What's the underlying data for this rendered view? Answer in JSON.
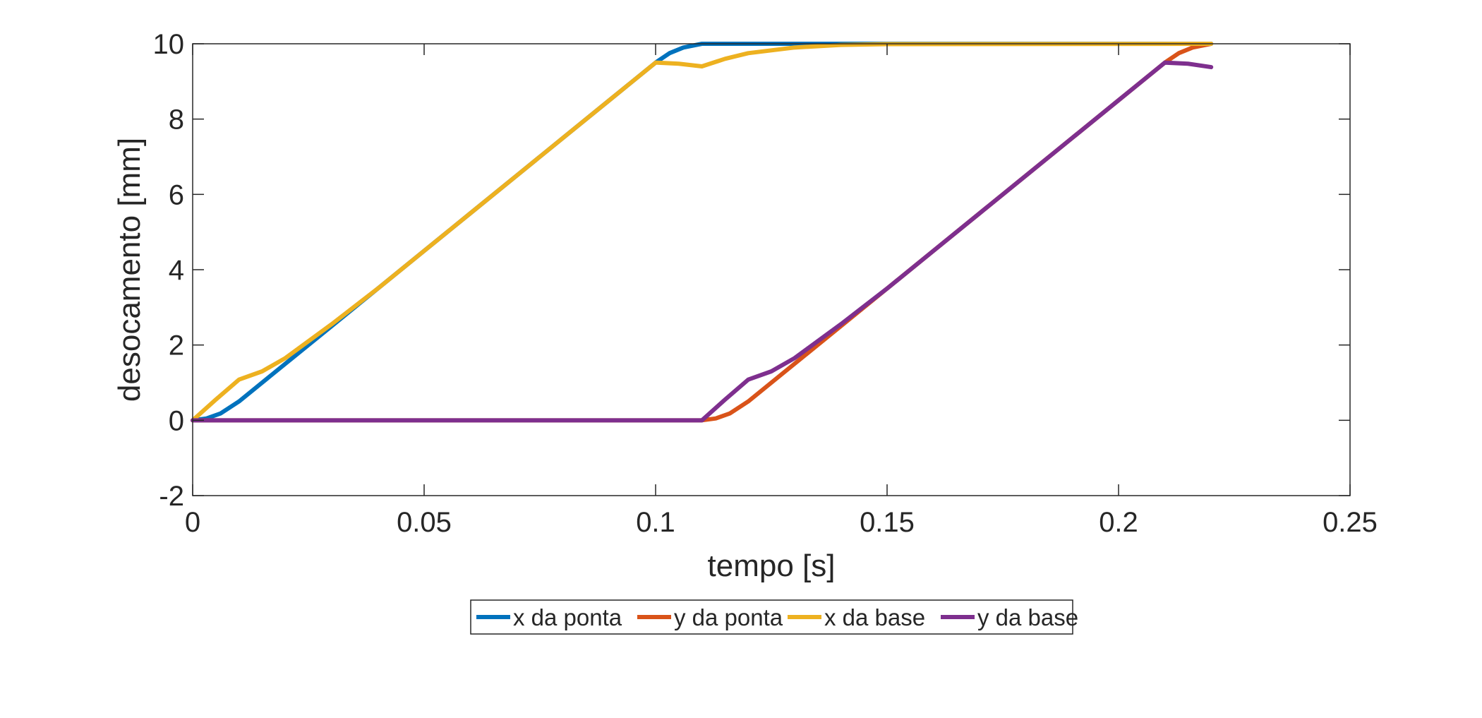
{
  "chart_data": {
    "type": "line",
    "title": "",
    "xlabel": "tempo [s]",
    "ylabel": "desocamento [mm]",
    "xlim": [
      0,
      0.25
    ],
    "ylim": [
      -2,
      10
    ],
    "xticks": [
      0,
      0.05,
      0.1,
      0.15,
      0.2,
      0.25
    ],
    "xtick_labels": [
      "0",
      "0.05",
      "0.1",
      "0.15",
      "0.2",
      "0.25"
    ],
    "yticks": [
      -2,
      0,
      2,
      4,
      6,
      8,
      10
    ],
    "ytick_labels": [
      "-2",
      "0",
      "2",
      "4",
      "6",
      "8",
      "10"
    ],
    "grid": false,
    "legend_position": "bottom-outside",
    "series": [
      {
        "name": "x da ponta",
        "color": "#0072BD",
        "points": [
          [
            0,
            0
          ],
          [
            0.003,
            0.05
          ],
          [
            0.006,
            0.18
          ],
          [
            0.01,
            0.5
          ],
          [
            0.02,
            1.5
          ],
          [
            0.03,
            2.5
          ],
          [
            0.04,
            3.5
          ],
          [
            0.05,
            4.5
          ],
          [
            0.06,
            5.5
          ],
          [
            0.07,
            6.5
          ],
          [
            0.08,
            7.5
          ],
          [
            0.09,
            8.5
          ],
          [
            0.1,
            9.5
          ],
          [
            0.103,
            9.75
          ],
          [
            0.106,
            9.9
          ],
          [
            0.11,
            10
          ],
          [
            0.15,
            10
          ],
          [
            0.22,
            10
          ]
        ]
      },
      {
        "name": "y da ponta",
        "color": "#D95319",
        "points": [
          [
            0,
            0
          ],
          [
            0.11,
            0
          ],
          [
            0.113,
            0.05
          ],
          [
            0.116,
            0.18
          ],
          [
            0.12,
            0.5
          ],
          [
            0.13,
            1.5
          ],
          [
            0.14,
            2.5
          ],
          [
            0.15,
            3.5
          ],
          [
            0.16,
            4.5
          ],
          [
            0.17,
            5.5
          ],
          [
            0.18,
            6.5
          ],
          [
            0.19,
            7.5
          ],
          [
            0.2,
            8.5
          ],
          [
            0.21,
            9.5
          ],
          [
            0.213,
            9.75
          ],
          [
            0.216,
            9.9
          ],
          [
            0.22,
            10
          ]
        ]
      },
      {
        "name": "x da base",
        "color": "#EDB120",
        "points": [
          [
            0,
            0
          ],
          [
            0.005,
            0.55
          ],
          [
            0.01,
            1.08
          ],
          [
            0.015,
            1.3
          ],
          [
            0.02,
            1.65
          ],
          [
            0.03,
            2.55
          ],
          [
            0.04,
            3.5
          ],
          [
            0.05,
            4.5
          ],
          [
            0.06,
            5.5
          ],
          [
            0.07,
            6.5
          ],
          [
            0.08,
            7.5
          ],
          [
            0.09,
            8.5
          ],
          [
            0.1,
            9.5
          ],
          [
            0.105,
            9.47
          ],
          [
            0.11,
            9.4
          ],
          [
            0.115,
            9.6
          ],
          [
            0.12,
            9.75
          ],
          [
            0.13,
            9.9
          ],
          [
            0.14,
            9.97
          ],
          [
            0.15,
            9.99
          ],
          [
            0.22,
            10
          ]
        ]
      },
      {
        "name": "y da base",
        "color": "#7E2F8E",
        "points": [
          [
            0,
            0
          ],
          [
            0.11,
            0
          ],
          [
            0.115,
            0.55
          ],
          [
            0.12,
            1.08
          ],
          [
            0.125,
            1.3
          ],
          [
            0.13,
            1.65
          ],
          [
            0.14,
            2.55
          ],
          [
            0.15,
            3.5
          ],
          [
            0.16,
            4.5
          ],
          [
            0.17,
            5.5
          ],
          [
            0.18,
            6.5
          ],
          [
            0.19,
            7.5
          ],
          [
            0.2,
            8.5
          ],
          [
            0.21,
            9.5
          ],
          [
            0.215,
            9.47
          ],
          [
            0.22,
            9.38
          ]
        ]
      }
    ]
  }
}
